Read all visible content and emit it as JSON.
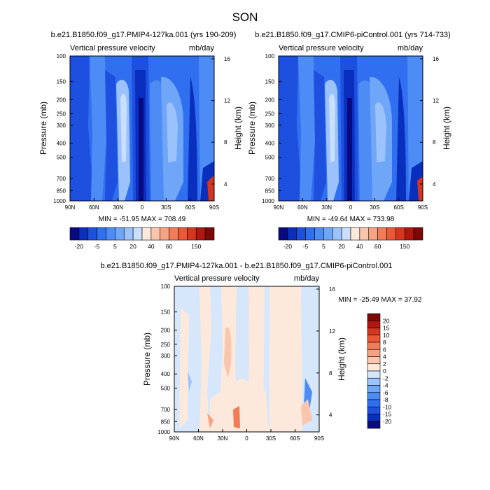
{
  "page": {
    "title": "SON",
    "lower_title": "b.e21.B1850.f09_g17.PMIP4-127ka.001 - b.e21.B1850.f09_g17.CMIP6-piControl.001"
  },
  "chart_data": [
    {
      "type": "heatmap",
      "title": "b.e21.B1850.f09_g17.PMIP4-127ka.001 (yrs 190-209)",
      "left_string": "Vertical pressure velocity",
      "right_string": "mb/day",
      "xlabel": "",
      "ylabel": "Pressure (mb)",
      "y2label": "Height (km)",
      "x_ticks": [
        "90N",
        "60N",
        "30N",
        "0",
        "30S",
        "60S",
        "90S"
      ],
      "y_ticks": [
        "100",
        "150",
        "200",
        "250",
        "300",
        "400",
        "500",
        "700",
        "850",
        "1000"
      ],
      "y2_ticks": [
        "16",
        "12",
        "8",
        "4"
      ],
      "stats": "MIN = -51.95   MAX = 708.49",
      "min": -51.95,
      "max": 708.49,
      "colorbar_labels": [
        "-20",
        "-5",
        "5",
        "20",
        "40",
        "60",
        "150"
      ],
      "colorbar_colors": [
        "#0a0a80",
        "#0a2fbf",
        "#1e50e0",
        "#3070f0",
        "#4d8cf5",
        "#6fa6f8",
        "#9cc2fb",
        "#c9dffc",
        "#fde9dc",
        "#fac5ad",
        "#f7a283",
        "#f27c59",
        "#ea5835",
        "#d4361f",
        "#b2160f",
        "#7c0808"
      ]
    },
    {
      "type": "heatmap",
      "title": "b.e21.B1850.f09_g17.CMIP6-piControl.001 (yrs 714-733)",
      "left_string": "Vertical pressure velocity",
      "right_string": "mb/day",
      "xlabel": "",
      "ylabel": "Pressure (mb)",
      "y2label": "Height (km)",
      "x_ticks": [
        "90N",
        "60N",
        "30N",
        "0",
        "30S",
        "60S",
        "90S"
      ],
      "y_ticks": [
        "100",
        "150",
        "200",
        "250",
        "300",
        "400",
        "500",
        "700",
        "850",
        "1000"
      ],
      "y2_ticks": [
        "16",
        "12",
        "8",
        "4"
      ],
      "stats": "MIN = -49.64   MAX = 733.98",
      "min": -49.64,
      "max": 733.98,
      "colorbar_labels": [
        "-20",
        "-5",
        "5",
        "20",
        "40",
        "60",
        "150"
      ],
      "colorbar_colors": [
        "#0a0a80",
        "#0a2fbf",
        "#1e50e0",
        "#3070f0",
        "#4d8cf5",
        "#6fa6f8",
        "#9cc2fb",
        "#c9dffc",
        "#fde9dc",
        "#fac5ad",
        "#f7a283",
        "#f27c59",
        "#ea5835",
        "#d4361f",
        "#b2160f",
        "#7c0808"
      ]
    },
    {
      "type": "heatmap",
      "title": "",
      "left_string": "Vertical pressure velocity",
      "right_string": "mb/day",
      "xlabel": "",
      "ylabel": "Pressure (mb)",
      "y2label": "Height (km)",
      "x_ticks": [
        "90N",
        "60N",
        "30N",
        "0",
        "30S",
        "60S",
        "90S"
      ],
      "y_ticks": [
        "100",
        "150",
        "200",
        "250",
        "300",
        "400",
        "500",
        "700",
        "850",
        "1000"
      ],
      "y2_ticks": [
        "16",
        "12",
        "8",
        "4"
      ],
      "stats": "MIN = -25.49   MAX =  37.92",
      "min": -25.49,
      "max": 37.92,
      "colorbar_labels": [
        "20",
        "15",
        "10",
        "8",
        "6",
        "4",
        "2",
        "0",
        "-2",
        "-4",
        "-6",
        "-8",
        "-10",
        "-15",
        "-20"
      ],
      "colorbar_colors": [
        "#7c0808",
        "#b2160f",
        "#d4361f",
        "#ea5835",
        "#f27c59",
        "#f7a283",
        "#fac5ad",
        "#fde9dc",
        "#d6e6fb",
        "#9cc2fb",
        "#6fa6f8",
        "#4d8cf5",
        "#3070f0",
        "#1e50e0",
        "#0a2fbf",
        "#0a0a80"
      ]
    }
  ]
}
